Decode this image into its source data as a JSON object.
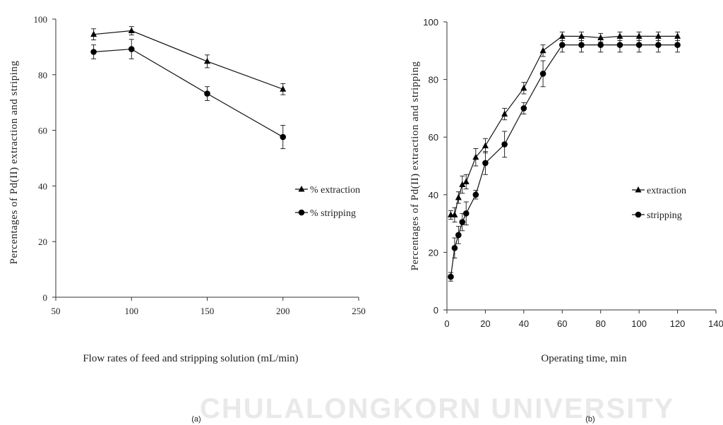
{
  "watermark": "CHULALONGKORN UNIVERSITY",
  "chart_data": [
    {
      "panel": "(a)",
      "type": "line",
      "xlabel": "Flow rates of feed and stripping solution (mL/min)",
      "ylabel": "Percentages of Pd(II)  extraction and striping",
      "xlim": [
        50,
        250
      ],
      "ylim": [
        0,
        100
      ],
      "xticks": [
        50,
        100,
        150,
        200,
        250
      ],
      "yticks": [
        0,
        20,
        40,
        60,
        80,
        100
      ],
      "legend_position": "right",
      "grid": false,
      "series": [
        {
          "name": "% extraction",
          "marker": "triangle",
          "x": [
            75,
            100,
            150,
            200
          ],
          "y": [
            94.5,
            95.8,
            84.8,
            74.8
          ],
          "err": [
            2.0,
            1.5,
            2.3,
            2.0
          ]
        },
        {
          "name": "% stripping",
          "marker": "circle",
          "x": [
            75,
            100,
            150,
            200
          ],
          "y": [
            88.2,
            89.2,
            73.2,
            57.6
          ],
          "err": [
            2.5,
            3.5,
            2.5,
            4.2
          ]
        }
      ]
    },
    {
      "panel": "(b)",
      "type": "line",
      "xlabel": "Operating time, min",
      "ylabel": "Percentages  of  Pd(II)  extraction  and  stripping",
      "xlim": [
        0,
        140
      ],
      "ylim": [
        0,
        100
      ],
      "xticks": [
        0,
        20,
        40,
        60,
        80,
        100,
        120,
        140
      ],
      "yticks": [
        0,
        20,
        40,
        60,
        80,
        100
      ],
      "legend_position": "right",
      "grid": false,
      "series": [
        {
          "name": "extraction",
          "marker": "triangle",
          "x": [
            2,
            4,
            6,
            8,
            10,
            15,
            20,
            30,
            40,
            50,
            60,
            70,
            80,
            90,
            100,
            110,
            120
          ],
          "y": [
            33,
            33,
            39,
            43.5,
            44.5,
            53,
            57,
            68,
            77,
            90,
            95,
            95,
            94.5,
            95,
            95,
            95,
            95
          ],
          "err": [
            1.5,
            2.5,
            2.0,
            3.0,
            2.5,
            3.0,
            2.5,
            2.0,
            2.0,
            2.0,
            1.5,
            1.5,
            1.5,
            1.5,
            1.5,
            1.5,
            1.5
          ]
        },
        {
          "name": "stripping",
          "marker": "circle",
          "x": [
            2,
            4,
            6,
            8,
            10,
            15,
            20,
            30,
            40,
            50,
            60,
            70,
            80,
            90,
            100,
            110,
            120
          ],
          "y": [
            11.5,
            21.5,
            26,
            30.5,
            33.5,
            40,
            51,
            57.5,
            70,
            82,
            92,
            92,
            92,
            92,
            92,
            92,
            92
          ],
          "err": [
            1.5,
            3.5,
            3.0,
            3.0,
            4.0,
            1.5,
            4.0,
            4.5,
            2.0,
            4.5,
            2.5,
            2.5,
            2.5,
            2.5,
            2.5,
            2.5,
            2.5
          ]
        }
      ]
    }
  ]
}
